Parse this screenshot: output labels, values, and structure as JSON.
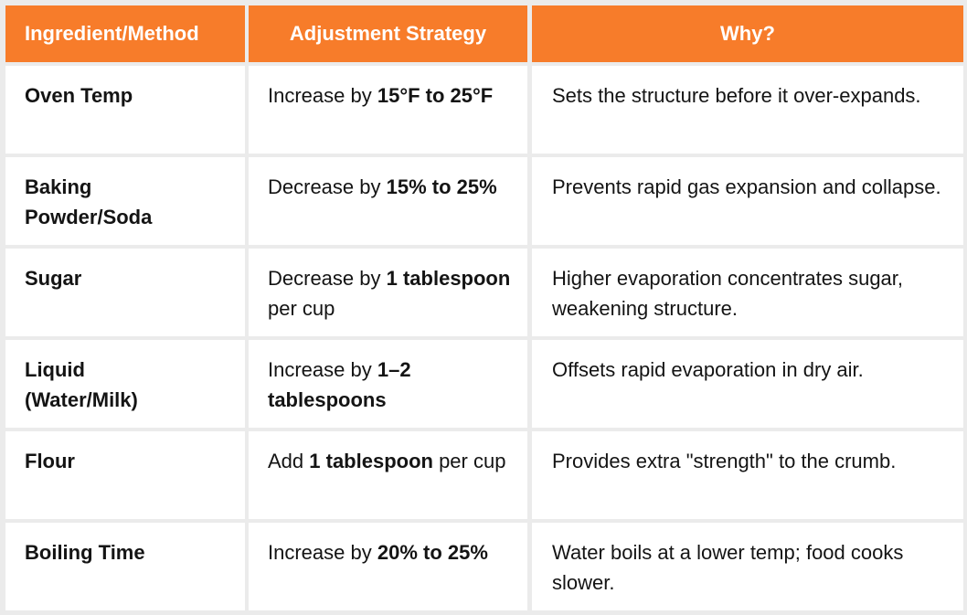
{
  "colors": {
    "header_bg": "#f77c2a",
    "header_text": "#ffffff",
    "grid": "#ebebeb",
    "cell_bg": "#ffffff",
    "text": "#141414"
  },
  "headers": [
    "Ingredient/Method",
    "Adjustment Strategy",
    "Why?"
  ],
  "rows": [
    {
      "item": "Oven Temp",
      "strategy": [
        {
          "t": "Increase by ",
          "b": false
        },
        {
          "t": "15°F to 25°F",
          "b": true
        }
      ],
      "why": "Sets the structure before it over-expands."
    },
    {
      "item": "Baking Powder/Soda",
      "strategy": [
        {
          "t": "Decrease by ",
          "b": false
        },
        {
          "t": "15% to 25%",
          "b": true
        }
      ],
      "why": "Prevents rapid gas expansion and collapse."
    },
    {
      "item": "Sugar",
      "strategy": [
        {
          "t": "Decrease by ",
          "b": false
        },
        {
          "t": "1 tablespoon",
          "b": true
        },
        {
          "t": " per cup",
          "b": false
        }
      ],
      "why": "Higher evaporation concentrates sugar, weakening structure."
    },
    {
      "item": "Liquid (Water/Milk)",
      "strategy": [
        {
          "t": "Increase by ",
          "b": false
        },
        {
          "t": "1–2 tablespoons",
          "b": true
        }
      ],
      "why": "Offsets rapid evaporation in dry air."
    },
    {
      "item": "Flour",
      "strategy": [
        {
          "t": "Add ",
          "b": false
        },
        {
          "t": "1 tablespoon",
          "b": true
        },
        {
          "t": " per cup",
          "b": false
        }
      ],
      "why": "Provides extra \"strength\" to the crumb."
    },
    {
      "item": "Boiling Time",
      "strategy": [
        {
          "t": "Increase by ",
          "b": false
        },
        {
          "t": "20% to 25%",
          "b": true
        }
      ],
      "why": "Water boils at a lower temp; food cooks slower."
    }
  ]
}
